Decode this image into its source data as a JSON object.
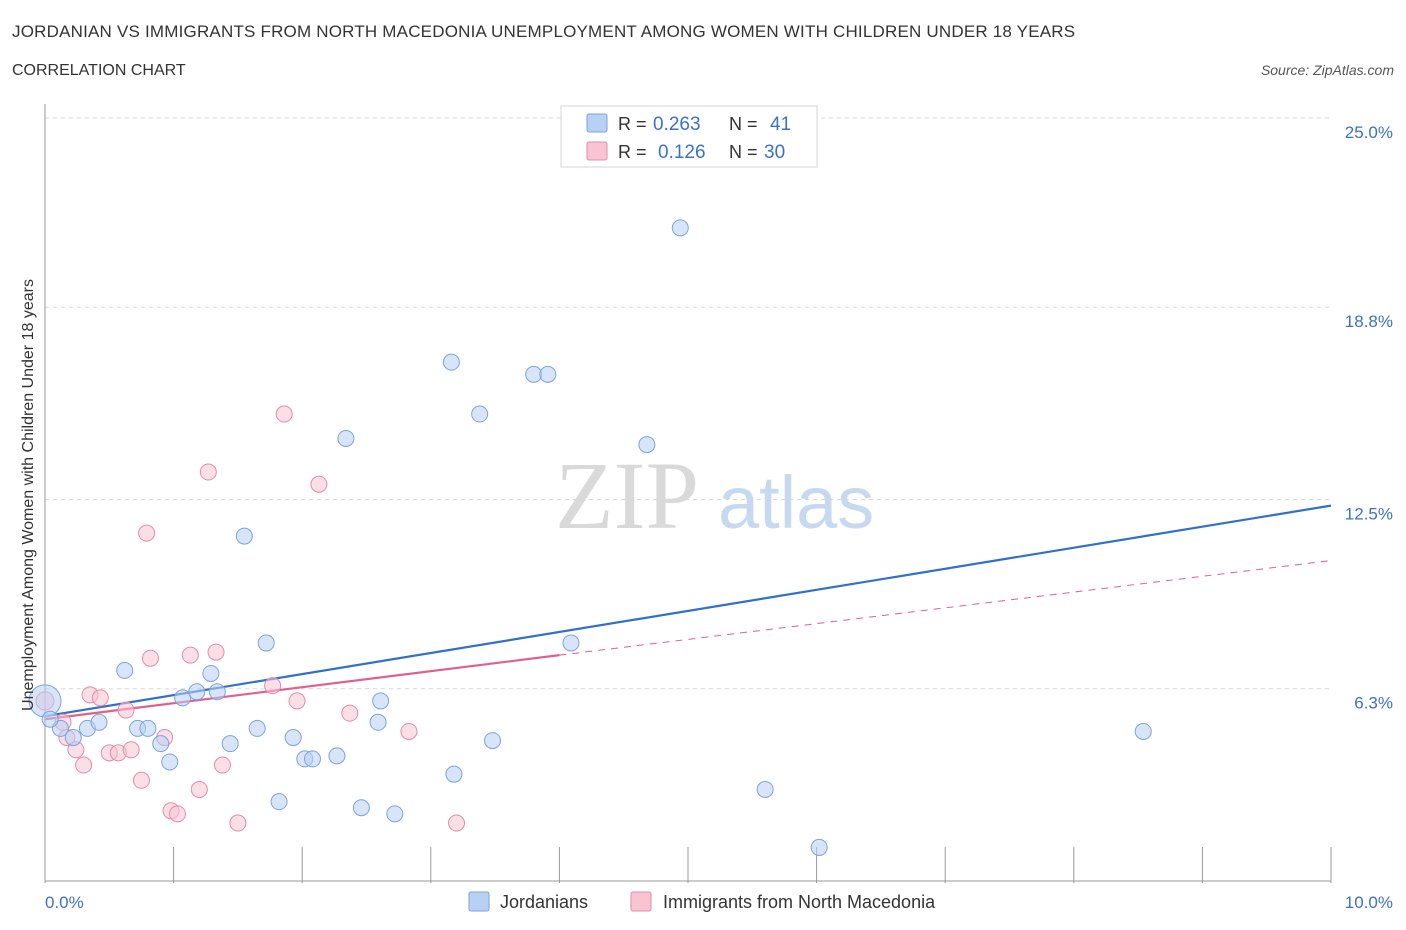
{
  "header": {
    "title": "JORDANIAN VS IMMIGRANTS FROM NORTH MACEDONIA UNEMPLOYMENT AMONG WOMEN WITH CHILDREN UNDER 18 YEARS",
    "subtitle": "CORRELATION CHART",
    "source": "Source: ZipAtlas.com"
  },
  "watermark": {
    "zip": "ZIP",
    "atlas": "atlas"
  },
  "legend_top": {
    "rows": [
      {
        "r_label": "R =",
        "r_value": "0.263",
        "n_label": "N =",
        "n_value": "41"
      },
      {
        "r_label": "R =",
        "r_value": "0.126",
        "n_label": "N =",
        "n_value": "30"
      }
    ]
  },
  "legend_bottom": {
    "items": [
      "Jordanians",
      "Immigrants from North Macedonia"
    ]
  },
  "colors": {
    "blue_fill": "#b8d0f4",
    "blue_stroke": "#7aa3dd",
    "blue_line": "#2f6fce",
    "pink_fill": "#f8c4d4",
    "pink_stroke": "#e58aa8",
    "pink_line": "#e0608a",
    "tick_text": "#3a72c9",
    "grid": "#d8d8d8"
  },
  "chart_data": {
    "type": "scatter",
    "title": "JORDANIAN VS IMMIGRANTS FROM NORTH MACEDONIA UNEMPLOYMENT AMONG WOMEN WITH CHILDREN UNDER 18 YEARS",
    "xlabel": "",
    "ylabel": "Unemployment Among Women with Children Under 18 years",
    "xlim": [
      0,
      10
    ],
    "ylim": [
      0,
      25
    ],
    "x_tick_labels": [
      "0.0%",
      "10.0%"
    ],
    "y_tick_values": [
      6.3,
      12.5,
      18.8,
      25.0
    ],
    "y_tick_labels": [
      "6.3%",
      "12.5%",
      "18.8%",
      "25.0%"
    ],
    "grid": "horizontal dashed",
    "legend_position": "top-center",
    "series": [
      {
        "name": "Jordanians",
        "points": [
          [
            0.0,
            5.9
          ],
          [
            0.12,
            5.0
          ],
          [
            0.22,
            4.7
          ],
          [
            0.33,
            5.0
          ],
          [
            0.42,
            5.2
          ],
          [
            0.62,
            6.9
          ],
          [
            0.72,
            5.0
          ],
          [
            0.8,
            5.0
          ],
          [
            0.9,
            4.5
          ],
          [
            0.97,
            3.9
          ],
          [
            1.07,
            6.0
          ],
          [
            1.18,
            6.2
          ],
          [
            1.29,
            6.8
          ],
          [
            1.34,
            6.2
          ],
          [
            1.44,
            4.5
          ],
          [
            1.55,
            11.3
          ],
          [
            1.65,
            5.0
          ],
          [
            1.72,
            7.8
          ],
          [
            1.82,
            2.6
          ],
          [
            1.93,
            4.7
          ],
          [
            2.02,
            4.0
          ],
          [
            2.08,
            4.0
          ],
          [
            2.27,
            4.1
          ],
          [
            2.34,
            14.5
          ],
          [
            2.46,
            2.4
          ],
          [
            2.59,
            5.2
          ],
          [
            2.61,
            5.9
          ],
          [
            2.72,
            2.2
          ],
          [
            3.16,
            17.0
          ],
          [
            3.18,
            3.5
          ],
          [
            3.38,
            15.3
          ],
          [
            3.48,
            4.6
          ],
          [
            3.8,
            16.6
          ],
          [
            3.91,
            16.6
          ],
          [
            4.09,
            7.8
          ],
          [
            4.68,
            14.3
          ],
          [
            4.94,
            21.4
          ],
          [
            5.6,
            3.0
          ],
          [
            6.02,
            1.1
          ],
          [
            8.54,
            4.9
          ],
          [
            0.04,
            5.3
          ]
        ],
        "trend": {
          "x": [
            0,
            10
          ],
          "y": [
            5.4,
            12.3
          ]
        }
      },
      {
        "name": "Immigrants from North Macedonia",
        "points": [
          [
            0.0,
            5.9
          ],
          [
            0.14,
            5.2
          ],
          [
            0.17,
            4.7
          ],
          [
            0.24,
            4.3
          ],
          [
            0.3,
            3.8
          ],
          [
            0.35,
            6.1
          ],
          [
            0.43,
            6.0
          ],
          [
            0.5,
            4.2
          ],
          [
            0.57,
            4.2
          ],
          [
            0.63,
            5.6
          ],
          [
            0.67,
            4.3
          ],
          [
            0.75,
            3.3
          ],
          [
            0.79,
            11.4
          ],
          [
            0.82,
            7.3
          ],
          [
            0.93,
            4.7
          ],
          [
            0.98,
            2.3
          ],
          [
            1.03,
            2.2
          ],
          [
            1.13,
            7.4
          ],
          [
            1.2,
            3.0
          ],
          [
            1.27,
            13.4
          ],
          [
            1.33,
            7.5
          ],
          [
            1.38,
            3.8
          ],
          [
            1.5,
            1.9
          ],
          [
            1.77,
            6.4
          ],
          [
            1.86,
            15.3
          ],
          [
            1.96,
            5.9
          ],
          [
            2.13,
            13.0
          ],
          [
            2.37,
            5.5
          ],
          [
            2.83,
            4.9
          ],
          [
            3.2,
            1.9
          ]
        ],
        "trend": {
          "x": [
            0,
            4.0
          ],
          "y": [
            5.3,
            7.4
          ]
        },
        "trend_extension": {
          "x": [
            4.0,
            10
          ],
          "y": [
            7.4,
            10.5
          ]
        }
      }
    ]
  }
}
